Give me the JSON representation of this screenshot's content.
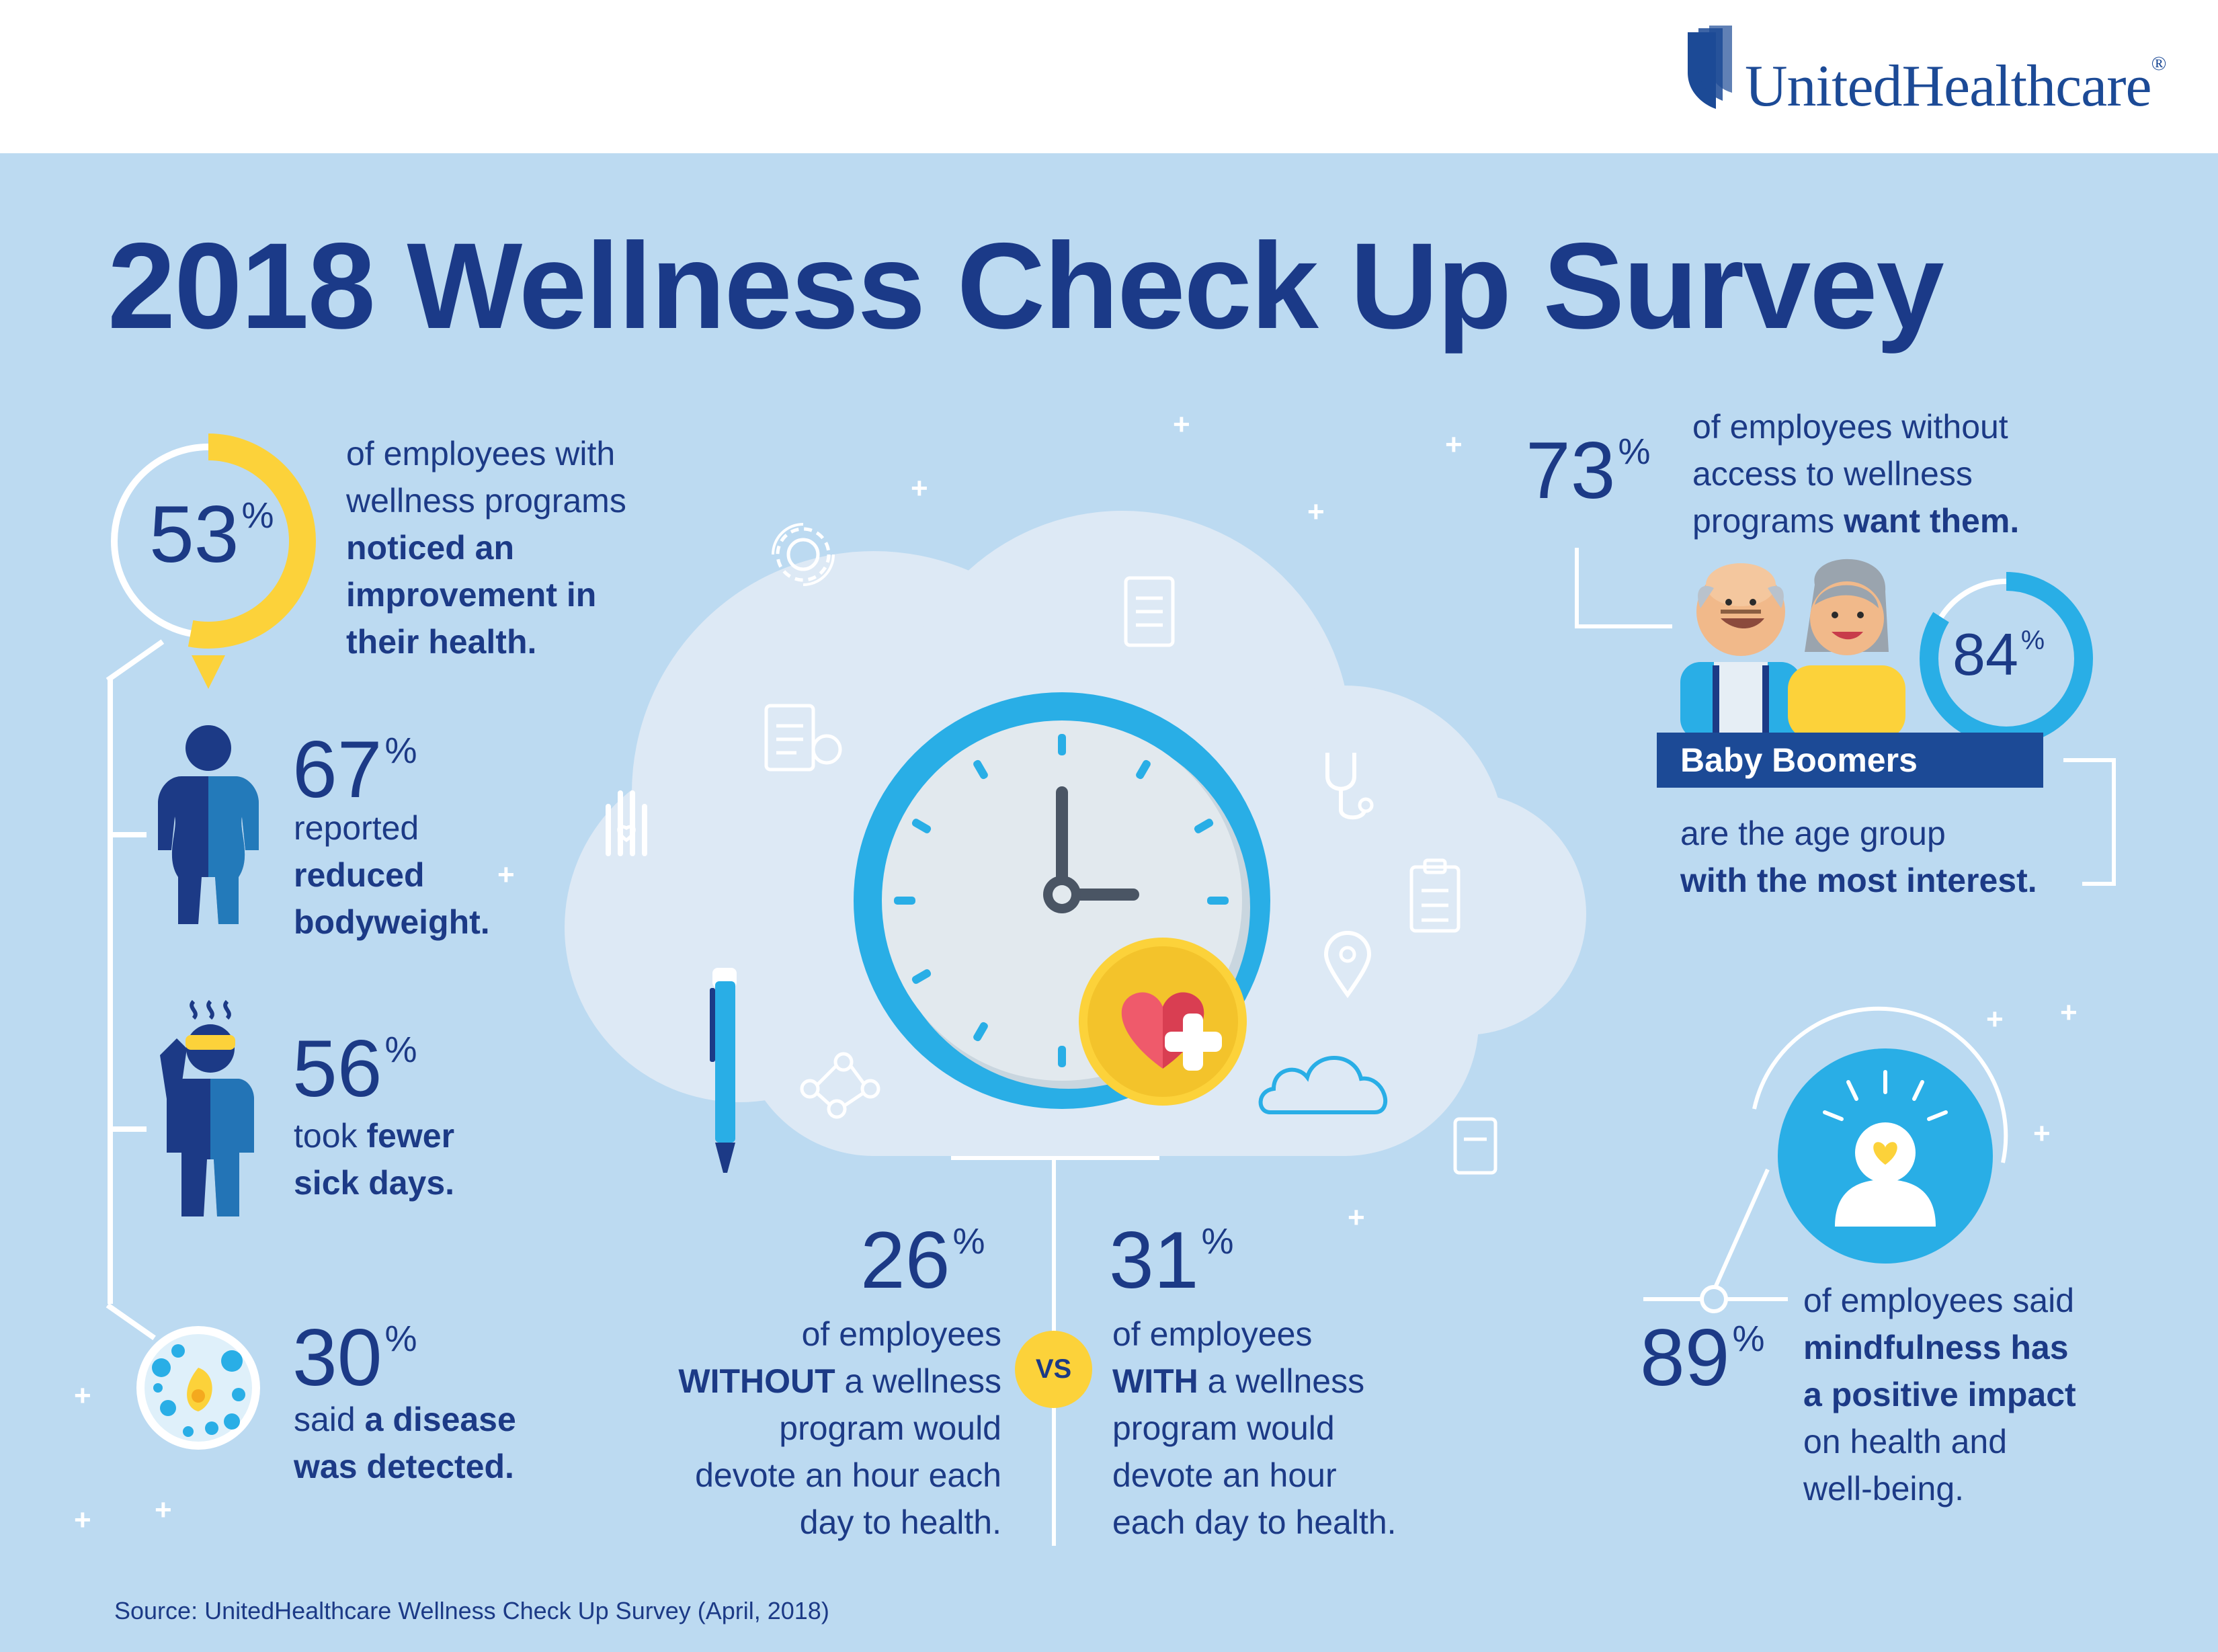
{
  "brand": {
    "name": "UnitedHealthcare",
    "reg": "®"
  },
  "title": "2018 Wellness Check Up Survey",
  "stats": {
    "s53": {
      "value": "53",
      "pct": "%",
      "line1": "of employees with",
      "line2": "wellness programs",
      "bold1": "noticed an",
      "bold2": "improvement in",
      "bold3": "their health."
    },
    "s67": {
      "value": "67",
      "pct": "%",
      "line1": "reported",
      "bold1": "reduced",
      "bold2": "bodyweight."
    },
    "s56": {
      "value": "56",
      "pct": "%",
      "pre": "took ",
      "bold1": "fewer",
      "bold2": "sick days."
    },
    "s30": {
      "value": "30",
      "pct": "%",
      "pre": "said ",
      "bold1": "a disease",
      "bold2": "was detected."
    },
    "s26": {
      "value": "26",
      "pct": "%",
      "line1": "of employees",
      "bold1": "WITHOUT",
      "line2": " a wellness",
      "line3": "program would",
      "line4": "devote an hour each",
      "line5": "day to health."
    },
    "vs": "VS",
    "s31": {
      "value": "31",
      "pct": "%",
      "line1": "of employees",
      "bold1": "WITH",
      "line2": " a wellness",
      "line3": "program would",
      "line4": "devote an hour",
      "line5": "each day to health."
    },
    "s73": {
      "value": "73",
      "pct": "%",
      "line1": "of employees without",
      "line2": "access to wellness",
      "line3": "programs ",
      "bold1": "want them."
    },
    "s84": {
      "value": "84",
      "pct": "%",
      "banner": "Baby Boomers",
      "line1": "are the age group",
      "bold1": "with the most interest."
    },
    "s89": {
      "value": "89",
      "pct": "%",
      "line1": "of employees said",
      "bold1": "mindfulness has",
      "bold2": "a positive impact",
      "line2": "on health and",
      "line3": "well-being."
    }
  },
  "source": "Source: UnitedHealthcare Wellness Check Up Survey (April, 2018)",
  "colors": {
    "navy": "#1c3a86",
    "blue": "#29aee6",
    "yellow": "#fcd23a",
    "background": "#bcdaf1",
    "cloud": "#dde9f5"
  },
  "ring_fractions": {
    "s53": 0.53,
    "s84": 0.84
  },
  "icons": [
    "logo-shield-icon",
    "body-weight-icon",
    "sick-person-icon",
    "microscope-cell-icon",
    "clock-icon",
    "heart-plus-icon",
    "pen-icon",
    "gear-icon",
    "document-icon",
    "checklist-icon",
    "stethoscope-icon",
    "hand-heart-icon",
    "location-pin-icon",
    "network-icon",
    "small-cloud-icon",
    "seniors-couple-icon",
    "mindfulness-icon"
  ]
}
